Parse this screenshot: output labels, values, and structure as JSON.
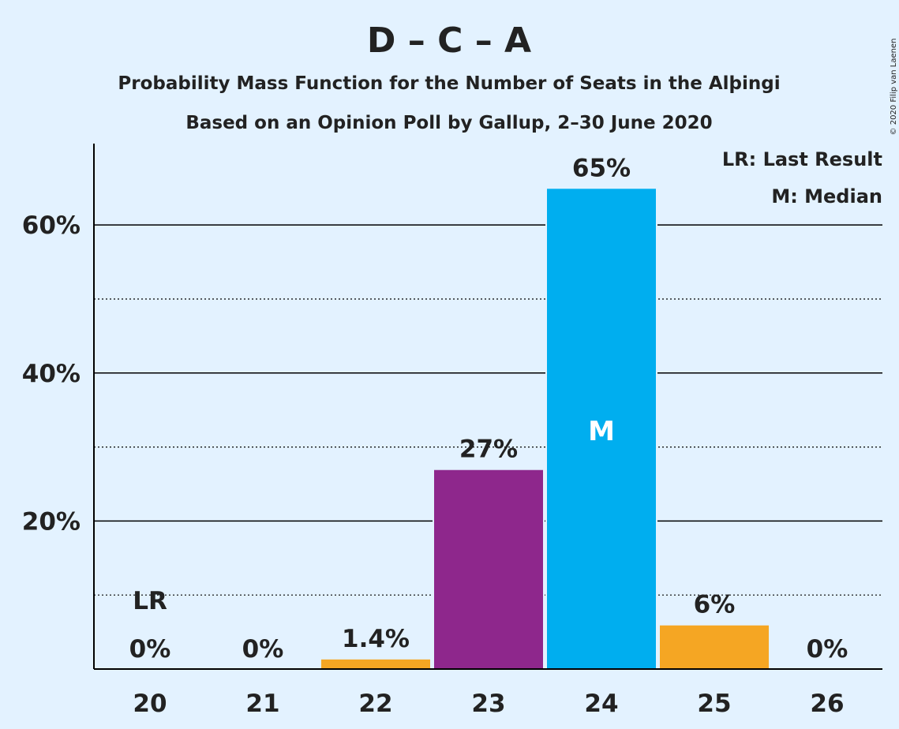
{
  "chart_data": {
    "type": "bar",
    "title": "D – C – A",
    "subtitle": "Probability Mass Function for the Number of Seats in the Alþingi",
    "subtitle2": "Based on an Opinion Poll by Gallup, 2–30 June 2020",
    "copyright": "© 2020 Filip van Laenen",
    "legend": {
      "last_result": "LR: Last Result",
      "median": "M: Median",
      "placement": "top-right"
    },
    "categories": [
      "20",
      "21",
      "22",
      "23",
      "24",
      "25",
      "26"
    ],
    "values": [
      0,
      0,
      1.4,
      27,
      65,
      6,
      0
    ],
    "value_labels": [
      "0%",
      "0%",
      "1.4%",
      "27%",
      "65%",
      "6%",
      "0%"
    ],
    "bar_colors": [
      "#f5a623",
      "#f5a623",
      "#f5a623",
      "#8e278c",
      "#00aeef",
      "#f5a623",
      "#f5a623"
    ],
    "last_result_category": "20",
    "last_result_label": "LR",
    "median_category": "24",
    "median_label": "M",
    "ylim": [
      0,
      71
    ],
    "yticks": [
      20,
      40,
      60
    ],
    "ytick_labels": [
      "20%",
      "40%",
      "60%"
    ],
    "minor_gridlines": [
      10,
      30,
      50
    ],
    "grid": true
  }
}
